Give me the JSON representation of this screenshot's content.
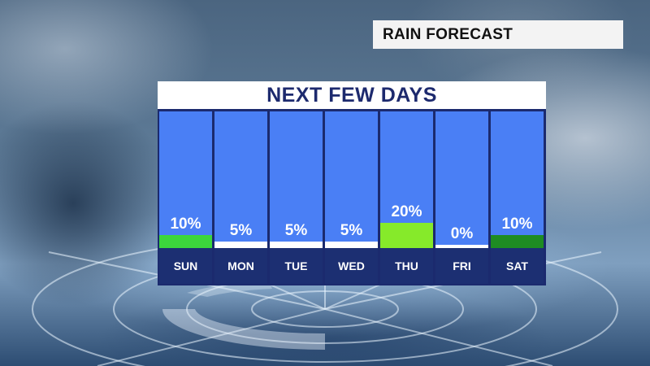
{
  "title": "RAIN FORECAST",
  "panel_title": "NEXT FEW DAYS",
  "days": [
    {
      "day": "SUN",
      "label": "10%",
      "value": 10,
      "color": "#3cd63c"
    },
    {
      "day": "MON",
      "label": "5%",
      "value": 5,
      "color": "#ffffff"
    },
    {
      "day": "TUE",
      "label": "5%",
      "value": 5,
      "color": "#ffffff"
    },
    {
      "day": "WED",
      "label": "5%",
      "value": 5,
      "color": "#ffffff"
    },
    {
      "day": "THU",
      "label": "20%",
      "value": 20,
      "color": "#86ea2a"
    },
    {
      "day": "FRI",
      "label": "0%",
      "value": 0,
      "color": "#ffffff"
    },
    {
      "day": "SAT",
      "label": "10%",
      "value": 10,
      "color": "#1e8c22"
    }
  ]
}
